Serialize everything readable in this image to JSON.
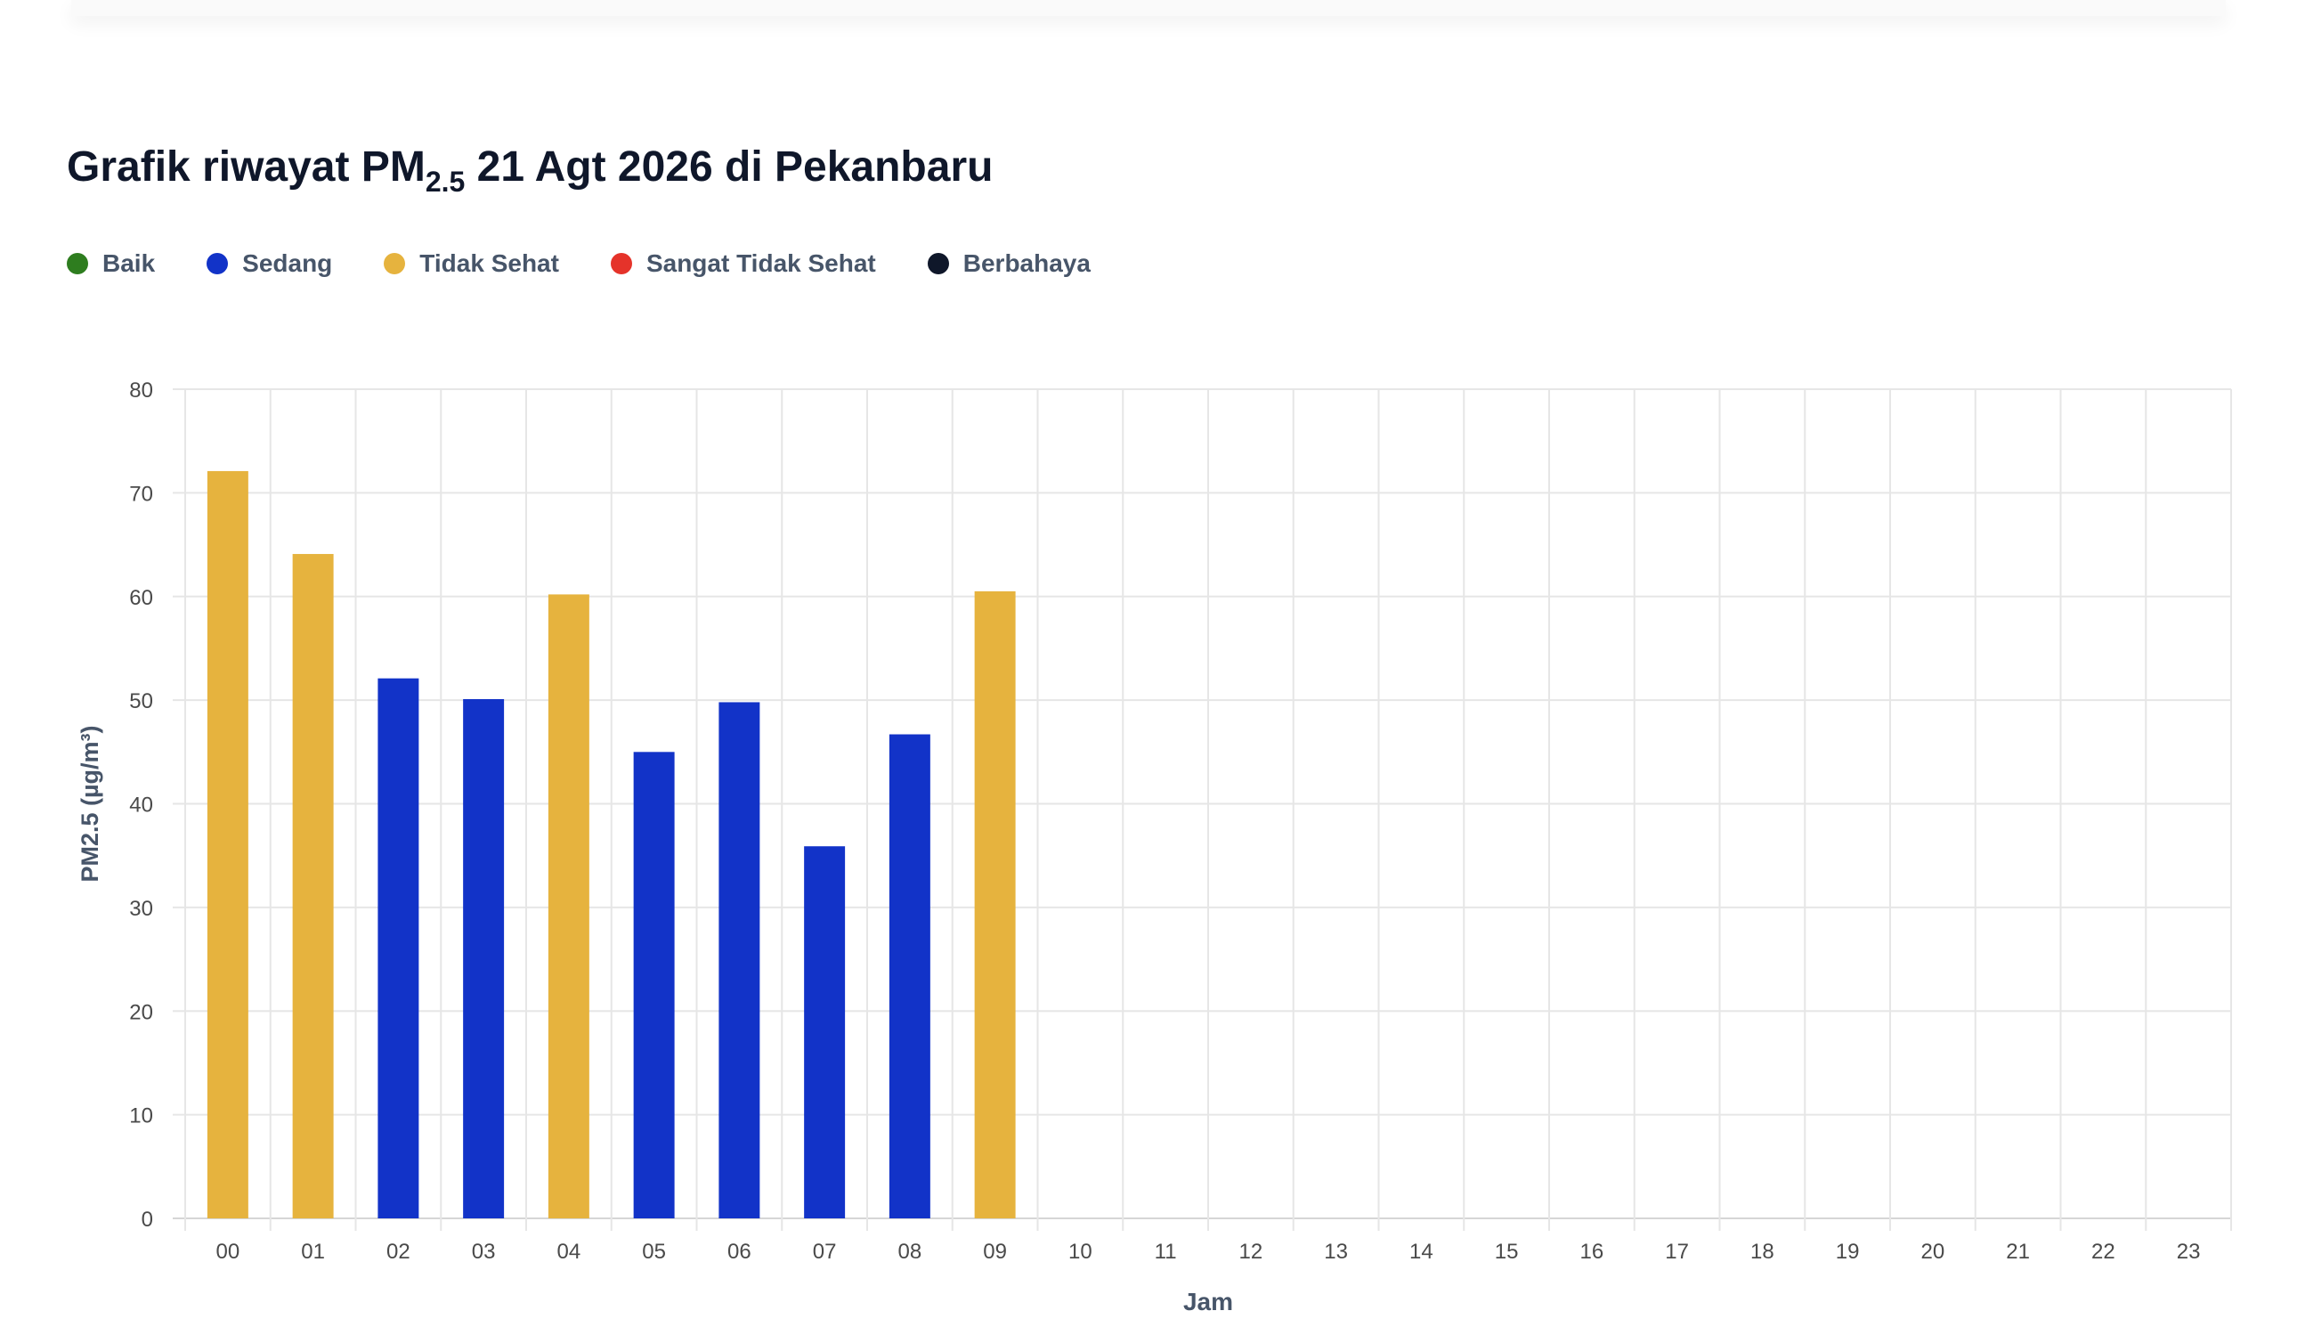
{
  "header": {
    "title_prefix": "Grafik riwayat PM",
    "title_subscript": "2.5",
    "title_suffix": " 21 Agt 2026 di Pekanbaru"
  },
  "legend": [
    {
      "label": "Baik",
      "color": "#2e7d1f"
    },
    {
      "label": "Sedang",
      "color": "#1233c8"
    },
    {
      "label": "Tidak Sehat",
      "color": "#e6b33e"
    },
    {
      "label": "Sangat Tidak Sehat",
      "color": "#e5332a"
    },
    {
      "label": "Berbahaya",
      "color": "#0f172a"
    }
  ],
  "chart_data": {
    "type": "bar",
    "categories": [
      "00",
      "01",
      "02",
      "03",
      "04",
      "05",
      "06",
      "07",
      "08",
      "09",
      "10",
      "11",
      "12",
      "13",
      "14",
      "15",
      "16",
      "17",
      "18",
      "19",
      "20",
      "21",
      "22",
      "23"
    ],
    "values": [
      72.1,
      64.1,
      52.1,
      50.1,
      60.2,
      45.0,
      49.8,
      35.9,
      46.7,
      60.5,
      null,
      null,
      null,
      null,
      null,
      null,
      null,
      null,
      null,
      null,
      null,
      null,
      null,
      null
    ],
    "bar_colors": [
      "#e6b33e",
      "#e6b33e",
      "#1233c8",
      "#1233c8",
      "#e6b33e",
      "#1233c8",
      "#1233c8",
      "#1233c8",
      "#1233c8",
      "#e6b33e"
    ],
    "xlabel": "Jam",
    "ylabel": "PM2.5 (µg/m³)",
    "ylim": [
      0,
      80
    ],
    "yticks": [
      0,
      10,
      20,
      30,
      40,
      50,
      60,
      70,
      80
    ],
    "grid": true
  }
}
